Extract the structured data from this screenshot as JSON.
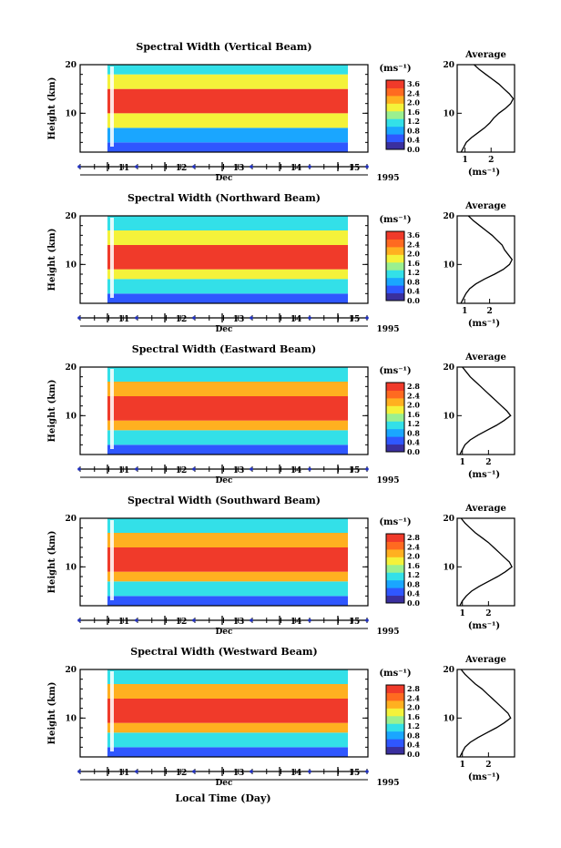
{
  "chart_data": [
    {
      "type": "heatmap",
      "title": "Spectral Width (Vertical Beam)",
      "ylabel": "Height (km)",
      "ylim": [
        2,
        20
      ],
      "yticks": [
        "20",
        "10"
      ],
      "xticks": [
        "11",
        "12",
        "13",
        "14",
        "15"
      ],
      "xlabel": "Dec",
      "year": "1995",
      "colorbar": {
        "unit": "(ms⁻¹)",
        "ticks": [
          "3.6",
          "2.4",
          "2.0",
          "1.6",
          "1.2",
          "0.8",
          "0.4",
          "0.0"
        ],
        "range": [
          0,
          3.6
        ]
      },
      "layers": [
        {
          "height_km": [
            2,
            4
          ],
          "width_ms": 0.4
        },
        {
          "height_km": [
            4,
            7
          ],
          "width_ms": 1.1
        },
        {
          "height_km": [
            7,
            10
          ],
          "width_ms": 2.0
        },
        {
          "height_km": [
            10,
            15
          ],
          "width_ms": 3.2
        },
        {
          "height_km": [
            15,
            18
          ],
          "width_ms": 2.2
        },
        {
          "height_km": [
            18,
            20
          ],
          "width_ms": 1.2
        }
      ],
      "average": {
        "title": "Average",
        "xlabel": "(ms⁻¹)",
        "xticks": [
          "1",
          "2"
        ],
        "xlim": [
          0.7,
          2.9
        ],
        "ylim": [
          2,
          20
        ],
        "height_km": [
          2,
          3,
          4,
          5,
          6,
          7,
          8,
          9,
          10,
          11,
          12,
          13,
          14,
          15,
          16,
          17,
          18,
          19,
          20
        ],
        "width_ms": [
          0.85,
          0.95,
          1.05,
          1.25,
          1.5,
          1.75,
          1.95,
          2.1,
          2.3,
          2.55,
          2.75,
          2.85,
          2.7,
          2.5,
          2.3,
          2.05,
          1.8,
          1.55,
          1.35
        ]
      }
    },
    {
      "type": "heatmap",
      "title": "Spectral Width (Northward Beam)",
      "ylabel": "Height (km)",
      "ylim": [
        2,
        20
      ],
      "yticks": [
        "20",
        "10"
      ],
      "xticks": [
        "11",
        "12",
        "13",
        "14",
        "15"
      ],
      "xlabel": "Dec",
      "year": "1995",
      "colorbar": {
        "unit": "(ms⁻¹)",
        "ticks": [
          "3.6",
          "2.4",
          "2.0",
          "1.6",
          "1.2",
          "0.8",
          "0.4",
          "0.0"
        ],
        "range": [
          0,
          3.6
        ]
      },
      "layers": [
        {
          "height_km": [
            2,
            4
          ],
          "width_ms": 0.5
        },
        {
          "height_km": [
            4,
            7
          ],
          "width_ms": 1.2
        },
        {
          "height_km": [
            7,
            9
          ],
          "width_ms": 2.3
        },
        {
          "height_km": [
            9,
            14
          ],
          "width_ms": 3.3
        },
        {
          "height_km": [
            14,
            17
          ],
          "width_ms": 2.1
        },
        {
          "height_km": [
            17,
            20
          ],
          "width_ms": 1.3
        }
      ],
      "average": {
        "title": "Average",
        "xlabel": "(ms⁻¹)",
        "xticks": [
          "1",
          "2"
        ],
        "xlim": [
          0.7,
          3.0
        ],
        "ylim": [
          2,
          20
        ],
        "height_km": [
          2,
          3,
          4,
          5,
          6,
          7,
          8,
          9,
          10,
          11,
          12,
          13,
          14,
          15,
          16,
          17,
          18,
          19,
          20
        ],
        "width_ms": [
          0.85,
          0.95,
          1.05,
          1.2,
          1.45,
          1.8,
          2.2,
          2.55,
          2.8,
          2.9,
          2.75,
          2.6,
          2.5,
          2.3,
          2.1,
          1.85,
          1.6,
          1.35,
          1.15
        ]
      }
    },
    {
      "type": "heatmap",
      "title": "Spectral Width (Eastward Beam)",
      "ylabel": "Height (km)",
      "ylim": [
        2,
        20
      ],
      "yticks": [
        "20",
        "10"
      ],
      "xticks": [
        "11",
        "12",
        "13",
        "14",
        "15"
      ],
      "xlabel": "Dec",
      "year": "1995",
      "colorbar": {
        "unit": "(ms⁻¹)",
        "ticks": [
          "2.8",
          "2.4",
          "2.0",
          "1.6",
          "1.2",
          "0.8",
          "0.4",
          "0.0"
        ],
        "range": [
          0,
          2.8
        ]
      },
      "layers": [
        {
          "height_km": [
            2,
            4
          ],
          "width_ms": 0.4
        },
        {
          "height_km": [
            4,
            7
          ],
          "width_ms": 1.0
        },
        {
          "height_km": [
            7,
            9
          ],
          "width_ms": 1.9
        },
        {
          "height_km": [
            9,
            14
          ],
          "width_ms": 2.7
        },
        {
          "height_km": [
            14,
            17
          ],
          "width_ms": 1.9
        },
        {
          "height_km": [
            17,
            20
          ],
          "width_ms": 1.2
        }
      ],
      "average": {
        "title": "Average",
        "xlabel": "(ms⁻¹)",
        "xticks": [
          "1",
          "2"
        ],
        "xlim": [
          0.8,
          3.0
        ],
        "ylim": [
          2,
          20
        ],
        "height_km": [
          2,
          3,
          4,
          5,
          6,
          7,
          8,
          9,
          10,
          11,
          12,
          13,
          14,
          15,
          16,
          17,
          18,
          19,
          20
        ],
        "width_ms": [
          0.9,
          1.0,
          1.1,
          1.3,
          1.6,
          1.95,
          2.3,
          2.6,
          2.85,
          2.7,
          2.5,
          2.3,
          2.1,
          1.9,
          1.7,
          1.5,
          1.3,
          1.15,
          1.0
        ]
      }
    },
    {
      "type": "heatmap",
      "title": "Spectral Width (Southward Beam)",
      "ylabel": "Height (km)",
      "ylim": [
        2,
        20
      ],
      "yticks": [
        "20",
        "10"
      ],
      "xticks": [
        "11",
        "12",
        "13",
        "14",
        "15"
      ],
      "xlabel": "Dec",
      "year": "1995",
      "colorbar": {
        "unit": "(ms⁻¹)",
        "ticks": [
          "2.8",
          "2.4",
          "2.0",
          "1.6",
          "1.2",
          "0.8",
          "0.4",
          "0.0"
        ],
        "range": [
          0,
          2.8
        ]
      },
      "layers": [
        {
          "height_km": [
            2,
            4
          ],
          "width_ms": 0.4
        },
        {
          "height_km": [
            4,
            7
          ],
          "width_ms": 1.0
        },
        {
          "height_km": [
            7,
            9
          ],
          "width_ms": 2.0
        },
        {
          "height_km": [
            9,
            14
          ],
          "width_ms": 2.7
        },
        {
          "height_km": [
            14,
            17
          ],
          "width_ms": 2.0
        },
        {
          "height_km": [
            17,
            20
          ],
          "width_ms": 1.2
        }
      ],
      "average": {
        "title": "Average",
        "xlabel": "(ms⁻¹)",
        "xticks": [
          "1",
          "2"
        ],
        "xlim": [
          0.8,
          3.0
        ],
        "ylim": [
          2,
          20
        ],
        "height_km": [
          2,
          3,
          4,
          5,
          6,
          7,
          8,
          9,
          10,
          11,
          12,
          13,
          14,
          15,
          16,
          17,
          18,
          19,
          20
        ],
        "width_ms": [
          0.9,
          1.0,
          1.15,
          1.35,
          1.65,
          2.0,
          2.35,
          2.65,
          2.9,
          2.8,
          2.6,
          2.4,
          2.2,
          2.0,
          1.75,
          1.5,
          1.3,
          1.1,
          0.95
        ]
      }
    },
    {
      "type": "heatmap",
      "title": "Spectral Width (Westward Beam)",
      "ylabel": "Height (km)",
      "ylim": [
        2,
        20
      ],
      "yticks": [
        "20",
        "10"
      ],
      "xticks": [
        "11",
        "12",
        "13",
        "14",
        "15"
      ],
      "xlabel": "Dec",
      "year": "1995",
      "colorbar": {
        "unit": "(ms⁻¹)",
        "ticks": [
          "2.8",
          "2.4",
          "2.0",
          "1.6",
          "1.2",
          "0.8",
          "0.4",
          "0.0"
        ],
        "range": [
          0,
          2.8
        ]
      },
      "layers": [
        {
          "height_km": [
            2,
            4
          ],
          "width_ms": 0.4
        },
        {
          "height_km": [
            4,
            7
          ],
          "width_ms": 1.0
        },
        {
          "height_km": [
            7,
            9
          ],
          "width_ms": 1.9
        },
        {
          "height_km": [
            9,
            14
          ],
          "width_ms": 2.7
        },
        {
          "height_km": [
            14,
            17
          ],
          "width_ms": 1.9
        },
        {
          "height_km": [
            17,
            20
          ],
          "width_ms": 1.1
        }
      ],
      "average": {
        "title": "Average",
        "xlabel": "(ms⁻¹)",
        "xticks": [
          "1",
          "2"
        ],
        "xlim": [
          0.8,
          3.0
        ],
        "ylim": [
          2,
          20
        ],
        "height_km": [
          2,
          3,
          4,
          5,
          6,
          7,
          8,
          9,
          10,
          11,
          12,
          13,
          14,
          15,
          16,
          17,
          18,
          19,
          20
        ],
        "width_ms": [
          0.9,
          1.0,
          1.1,
          1.3,
          1.6,
          1.95,
          2.3,
          2.6,
          2.85,
          2.75,
          2.55,
          2.35,
          2.15,
          1.95,
          1.75,
          1.5,
          1.3,
          1.1,
          0.95
        ]
      }
    }
  ],
  "figure": {
    "xlabel": "Local Time (Day)"
  },
  "colors": {
    "scale": [
      "#3a2f9e",
      "#2f57ff",
      "#1aa6ff",
      "#33e0e8",
      "#9af090",
      "#f4f23a",
      "#ffb020",
      "#ff6a20",
      "#f03a2a"
    ],
    "ticks": "#1f2fbf"
  }
}
